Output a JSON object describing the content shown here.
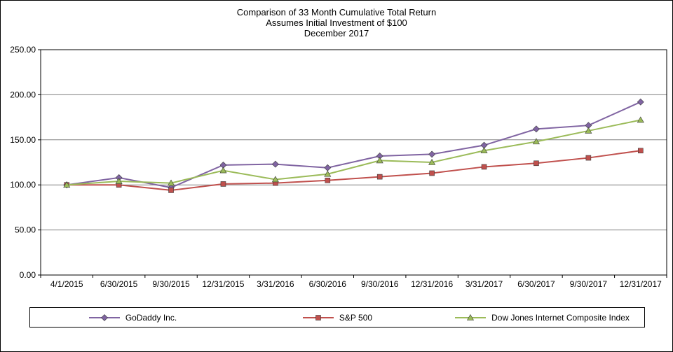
{
  "chart_data": {
    "type": "line",
    "title": [
      "Comparison of 33 Month Cumulative Total Return",
      "Assumes Initial Investment of $100",
      "December 2017"
    ],
    "categories": [
      "4/1/2015",
      "6/30/2015",
      "9/30/2015",
      "12/31/2015",
      "3/31/2016",
      "6/30/2016",
      "9/30/2016",
      "12/31/2016",
      "3/31/2017",
      "6/30/2017",
      "9/30/2017",
      "12/31/2017"
    ],
    "series": [
      {
        "name": "GoDaddy Inc.",
        "color": "#8064A2",
        "marker": "diamond",
        "values": [
          100,
          108,
          97,
          122,
          123,
          119,
          132,
          134,
          144,
          162,
          166,
          192
        ]
      },
      {
        "name": "S&P 500",
        "color": "#C0504D",
        "marker": "square",
        "values": [
          100,
          100,
          94,
          101,
          102,
          105,
          109,
          113,
          120,
          124,
          130,
          138
        ]
      },
      {
        "name": "Dow Jones Internet Composite Index",
        "color": "#9BBB59",
        "marker": "triangle",
        "values": [
          100,
          104,
          102,
          116,
          106,
          112,
          127,
          125,
          138,
          148,
          160,
          172
        ]
      }
    ],
    "ylim": [
      0,
      250
    ],
    "ytick_labels": [
      "0.00",
      "50.00",
      "100.00",
      "150.00",
      "200.00",
      "250.00"
    ],
    "grid": true,
    "legend_position": "bottom",
    "axis_color": "#000000",
    "grid_color": "#808080"
  }
}
